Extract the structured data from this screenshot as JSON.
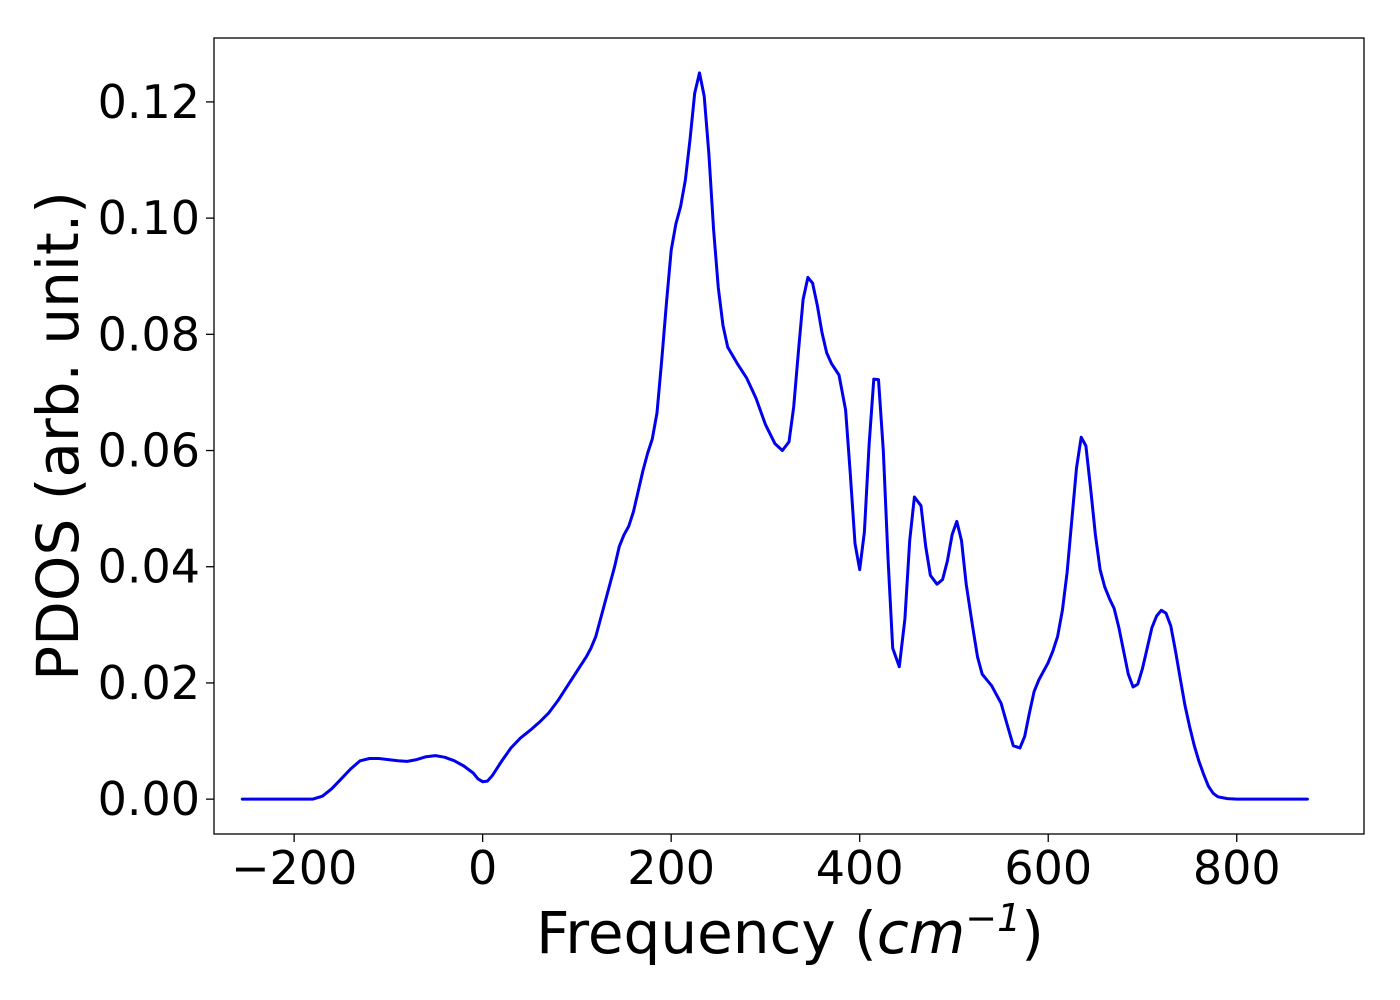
{
  "chart_data": {
    "type": "line",
    "title": "",
    "xlabel_main": "Frequency (",
    "xlabel_unit": "cm",
    "xlabel_exp": "−1",
    "xlabel_close": ")",
    "ylabel": "PDOS (arb. unit.)",
    "xlim": [
      -285,
      935
    ],
    "ylim": [
      -0.006,
      0.131
    ],
    "xticks": [
      -200,
      0,
      200,
      400,
      600,
      800
    ],
    "xtick_labels": [
      "−200",
      "0",
      "200",
      "400",
      "600",
      "800"
    ],
    "yticks": [
      0.0,
      0.02,
      0.04,
      0.06,
      0.08,
      0.1,
      0.12
    ],
    "ytick_labels": [
      "0.00",
      "0.02",
      "0.04",
      "0.06",
      "0.08",
      "0.10",
      "0.12"
    ],
    "grid": false,
    "series": [
      {
        "color": "#0000ee",
        "points": [
          [
            -255,
            0.0
          ],
          [
            -200,
            0.0
          ],
          [
            -180,
            0.0
          ],
          [
            -170,
            0.0005
          ],
          [
            -160,
            0.0018
          ],
          [
            -150,
            0.0035
          ],
          [
            -140,
            0.0052
          ],
          [
            -130,
            0.0066
          ],
          [
            -120,
            0.007
          ],
          [
            -110,
            0.007
          ],
          [
            -100,
            0.0068
          ],
          [
            -90,
            0.0066
          ],
          [
            -80,
            0.0065
          ],
          [
            -70,
            0.0068
          ],
          [
            -60,
            0.0073
          ],
          [
            -50,
            0.0075
          ],
          [
            -40,
            0.0072
          ],
          [
            -30,
            0.0066
          ],
          [
            -20,
            0.0057
          ],
          [
            -10,
            0.0045
          ],
          [
            -5,
            0.0035
          ],
          [
            0,
            0.003
          ],
          [
            5,
            0.0031
          ],
          [
            10,
            0.004
          ],
          [
            20,
            0.0065
          ],
          [
            30,
            0.0088
          ],
          [
            40,
            0.0105
          ],
          [
            50,
            0.0118
          ],
          [
            60,
            0.0132
          ],
          [
            70,
            0.0148
          ],
          [
            80,
            0.017
          ],
          [
            90,
            0.0195
          ],
          [
            100,
            0.022
          ],
          [
            110,
            0.0245
          ],
          [
            115,
            0.026
          ],
          [
            120,
            0.028
          ],
          [
            130,
            0.034
          ],
          [
            140,
            0.04
          ],
          [
            145,
            0.0435
          ],
          [
            150,
            0.0455
          ],
          [
            155,
            0.047
          ],
          [
            160,
            0.0495
          ],
          [
            165,
            0.053
          ],
          [
            170,
            0.0565
          ],
          [
            175,
            0.0595
          ],
          [
            180,
            0.062
          ],
          [
            185,
            0.0665
          ],
          [
            190,
            0.0755
          ],
          [
            195,
            0.0855
          ],
          [
            200,
            0.0945
          ],
          [
            205,
            0.099
          ],
          [
            210,
            0.102
          ],
          [
            215,
            0.1065
          ],
          [
            220,
            0.1135
          ],
          [
            225,
            0.1215
          ],
          [
            230,
            0.125
          ],
          [
            235,
            0.121
          ],
          [
            240,
            0.111
          ],
          [
            245,
            0.098
          ],
          [
            250,
            0.088
          ],
          [
            255,
            0.0815
          ],
          [
            260,
            0.0778
          ],
          [
            270,
            0.075
          ],
          [
            280,
            0.0725
          ],
          [
            290,
            0.069
          ],
          [
            300,
            0.0645
          ],
          [
            310,
            0.0612
          ],
          [
            318,
            0.06
          ],
          [
            325,
            0.0615
          ],
          [
            330,
            0.0675
          ],
          [
            335,
            0.077
          ],
          [
            340,
            0.086
          ],
          [
            345,
            0.0898
          ],
          [
            350,
            0.0888
          ],
          [
            355,
            0.085
          ],
          [
            360,
            0.0803
          ],
          [
            365,
            0.0768
          ],
          [
            370,
            0.075
          ],
          [
            378,
            0.073
          ],
          [
            385,
            0.067
          ],
          [
            390,
            0.056
          ],
          [
            395,
            0.044
          ],
          [
            400,
            0.0395
          ],
          [
            405,
            0.046
          ],
          [
            410,
            0.061
          ],
          [
            415,
            0.0723
          ],
          [
            420,
            0.0722
          ],
          [
            425,
            0.06
          ],
          [
            430,
            0.0415
          ],
          [
            435,
            0.026
          ],
          [
            442,
            0.0228
          ],
          [
            448,
            0.031
          ],
          [
            453,
            0.0445
          ],
          [
            458,
            0.052
          ],
          [
            465,
            0.0505
          ],
          [
            470,
            0.0435
          ],
          [
            475,
            0.0385
          ],
          [
            482,
            0.037
          ],
          [
            488,
            0.0378
          ],
          [
            493,
            0.041
          ],
          [
            498,
            0.0455
          ],
          [
            503,
            0.0478
          ],
          [
            508,
            0.0445
          ],
          [
            513,
            0.037
          ],
          [
            520,
            0.0295
          ],
          [
            525,
            0.0245
          ],
          [
            530,
            0.0215
          ],
          [
            540,
            0.0195
          ],
          [
            550,
            0.0165
          ],
          [
            557,
            0.0125
          ],
          [
            563,
            0.0092
          ],
          [
            570,
            0.0088
          ],
          [
            575,
            0.0108
          ],
          [
            580,
            0.0148
          ],
          [
            585,
            0.0185
          ],
          [
            590,
            0.0205
          ],
          [
            595,
            0.022
          ],
          [
            600,
            0.0235
          ],
          [
            605,
            0.0255
          ],
          [
            610,
            0.028
          ],
          [
            615,
            0.0325
          ],
          [
            620,
            0.039
          ],
          [
            625,
            0.048
          ],
          [
            630,
            0.057
          ],
          [
            635,
            0.0623
          ],
          [
            640,
            0.0608
          ],
          [
            645,
            0.0535
          ],
          [
            650,
            0.0455
          ],
          [
            655,
            0.0395
          ],
          [
            660,
            0.0365
          ],
          [
            665,
            0.0345
          ],
          [
            670,
            0.0328
          ],
          [
            675,
            0.0295
          ],
          [
            680,
            0.0255
          ],
          [
            685,
            0.0215
          ],
          [
            690,
            0.0193
          ],
          [
            695,
            0.0198
          ],
          [
            700,
            0.0225
          ],
          [
            705,
            0.026
          ],
          [
            710,
            0.0295
          ],
          [
            715,
            0.0315
          ],
          [
            720,
            0.0325
          ],
          [
            725,
            0.032
          ],
          [
            730,
            0.0298
          ],
          [
            735,
            0.0255
          ],
          [
            740,
            0.0208
          ],
          [
            745,
            0.0162
          ],
          [
            750,
            0.0125
          ],
          [
            755,
            0.0092
          ],
          [
            760,
            0.0065
          ],
          [
            765,
            0.0042
          ],
          [
            770,
            0.0022
          ],
          [
            775,
            0.001
          ],
          [
            780,
            0.0004
          ],
          [
            790,
            0.0001
          ],
          [
            800,
            0.0
          ],
          [
            850,
            0.0
          ],
          [
            875,
            0.0
          ]
        ]
      }
    ]
  }
}
